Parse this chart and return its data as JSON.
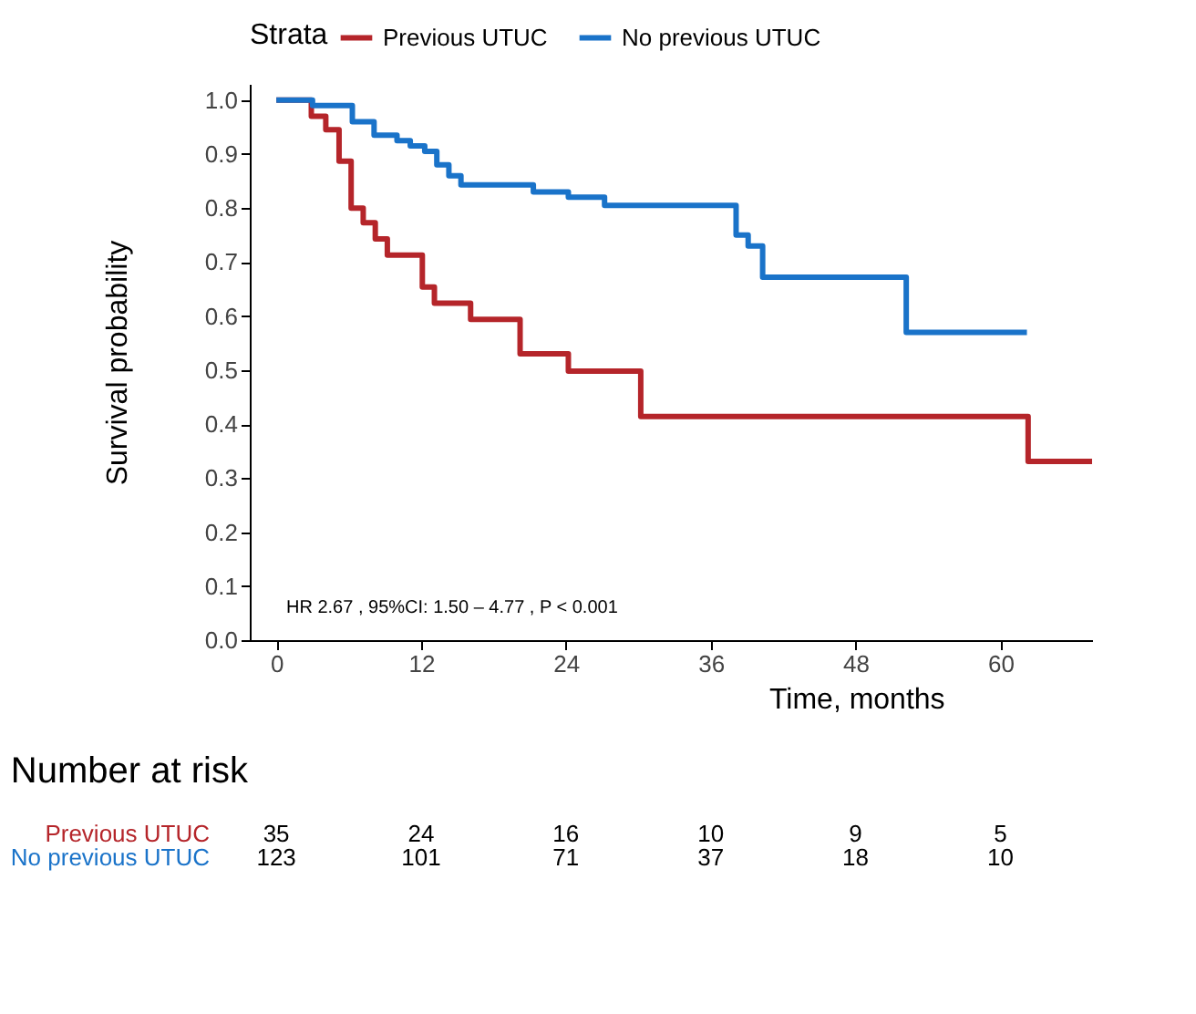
{
  "chart_data": [
    {
      "type": "step",
      "xlabel": "Time, months",
      "ylabel": "Survival probability",
      "legend_title": "Strata",
      "legend": "top",
      "grid": false,
      "line_style": "solid",
      "xlim": [
        -2.2,
        67.6
      ],
      "xticks": [
        0,
        12,
        24,
        36,
        48,
        60
      ],
      "ylim": [
        0,
        1.03
      ],
      "yticks": [
        {
          "value": 0,
          "label": "0.0"
        },
        0.1,
        0.2,
        0.3,
        0.4,
        0.5,
        0.6,
        0.7,
        0.8,
        0.9,
        {
          "value": 1,
          "label": "1.0"
        }
      ],
      "annotations": [
        "HR  2.67 , 95%CI:  1.50 – 4.77 ,  P < 0.001"
      ],
      "series": [
        {
          "name": "Previous UTUC",
          "color": "#b5252a",
          "x": [
            0,
            2.9,
            4.1,
            5.2,
            6.2,
            7.2,
            8.2,
            9.2,
            12.1,
            13.1,
            16.1,
            20.2,
            24.2,
            30.2,
            62.3,
            67.6
          ],
          "values": [
            1.0,
            0.97,
            0.945,
            0.887,
            0.8,
            0.773,
            0.743,
            0.713,
            0.654,
            0.624,
            0.594,
            0.53,
            0.498,
            0.414,
            0.331,
            0.331
          ]
        },
        {
          "name": "No previous UTUC",
          "color": "#1a73c9",
          "x": [
            0,
            3.0,
            6.3,
            8.1,
            10.0,
            11.1,
            12.3,
            13.3,
            14.3,
            15.3,
            21.3,
            24.2,
            27.2,
            38.1,
            39.1,
            40.3,
            52.2,
            62.2
          ],
          "values": [
            1.0,
            0.99,
            0.96,
            0.935,
            0.925,
            0.915,
            0.905,
            0.88,
            0.86,
            0.843,
            0.83,
            0.82,
            0.805,
            0.75,
            0.73,
            0.672,
            0.57,
            0.57
          ]
        }
      ]
    },
    {
      "type": "heatmap",
      "title": "Number at risk",
      "data_labels": true,
      "categories": [
        null,
        null,
        null,
        null,
        null,
        null
      ],
      "y_categories": [
        "Previous UTUC",
        "No previous UTUC"
      ],
      "cells": [
        [
          35,
          24,
          16,
          10,
          9,
          5
        ],
        [
          123,
          101,
          71,
          37,
          18,
          10
        ]
      ]
    }
  ]
}
